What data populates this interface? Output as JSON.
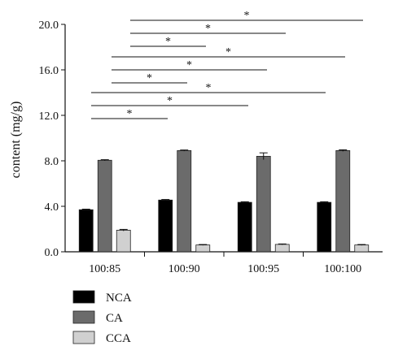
{
  "chart_data": {
    "type": "bar",
    "title": "",
    "ylabel": "content (mg/g)",
    "xlabel": "",
    "ylim": [
      0,
      20
    ],
    "yticks": [
      "0.0",
      "4.0",
      "8.0",
      "12.0",
      "16.0",
      "20.0"
    ],
    "categories": [
      "100:85",
      "100:90",
      "100:95",
      "100:100"
    ],
    "series": [
      {
        "name": "NCA",
        "color": "#000000",
        "values": [
          3.7,
          4.55,
          4.35,
          4.35
        ],
        "errors": [
          0.05,
          0.05,
          0.05,
          0.05
        ]
      },
      {
        "name": "CA",
        "color": "#6b6b6b",
        "values": [
          8.05,
          8.9,
          8.4,
          8.9
        ],
        "errors": [
          0.05,
          0.05,
          0.3,
          0.07
        ]
      },
      {
        "name": "CCA",
        "color": "#d0d0d0",
        "values": [
          1.9,
          0.6,
          0.65,
          0.6
        ],
        "errors": [
          0.07,
          0.04,
          0.04,
          0.04
        ]
      }
    ],
    "significance": [
      {
        "from": 0,
        "to": 1,
        "label": "*"
      },
      {
        "from": 0,
        "to": 2,
        "label": "*"
      },
      {
        "from": 0,
        "to": 3,
        "label": "*"
      },
      {
        "from": 1,
        "to": 2,
        "label": "*"
      },
      {
        "from": 1,
        "to": 3,
        "label": "*"
      },
      {
        "from": 1,
        "to": 4,
        "label": "*"
      },
      {
        "from": 2,
        "to": 3,
        "label": "*"
      },
      {
        "from": 2,
        "to": 4,
        "label": "*"
      },
      {
        "from": 2,
        "to": 5,
        "label": "*"
      }
    ],
    "legend_position": "bottom-left"
  }
}
